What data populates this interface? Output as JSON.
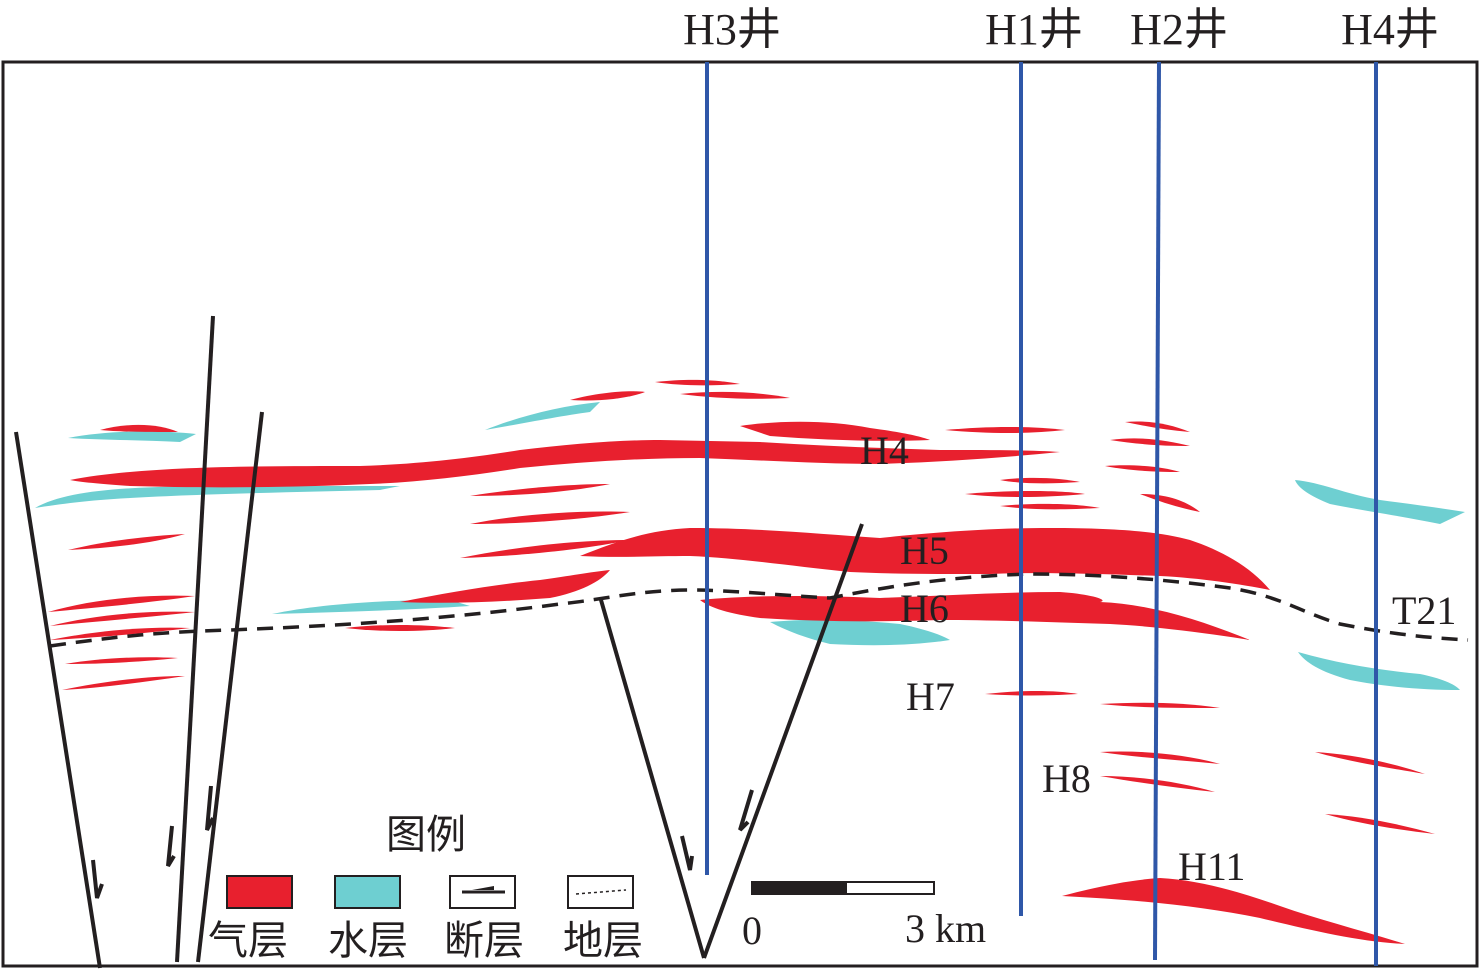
{
  "wells": [
    {
      "name": "H3井"
    },
    {
      "name": "H1井"
    },
    {
      "name": "H2井"
    },
    {
      "name": "H4井"
    }
  ],
  "layers": [
    "H4",
    "H5",
    "H6",
    "H7",
    "H8",
    "H11"
  ],
  "horizon": "T21",
  "legend": {
    "title": "图例",
    "items": [
      {
        "label": "气层",
        "color": "#e8202e"
      },
      {
        "label": "水层",
        "color": "#6ecfd1"
      },
      {
        "label": "断层"
      },
      {
        "label": "地层"
      }
    ]
  },
  "scale_bar": {
    "start": "0",
    "end": "3 km"
  },
  "colors": {
    "gas": "#e8202e",
    "water": "#6ecfd1",
    "well": "#2f57a8",
    "line": "#231f20"
  }
}
